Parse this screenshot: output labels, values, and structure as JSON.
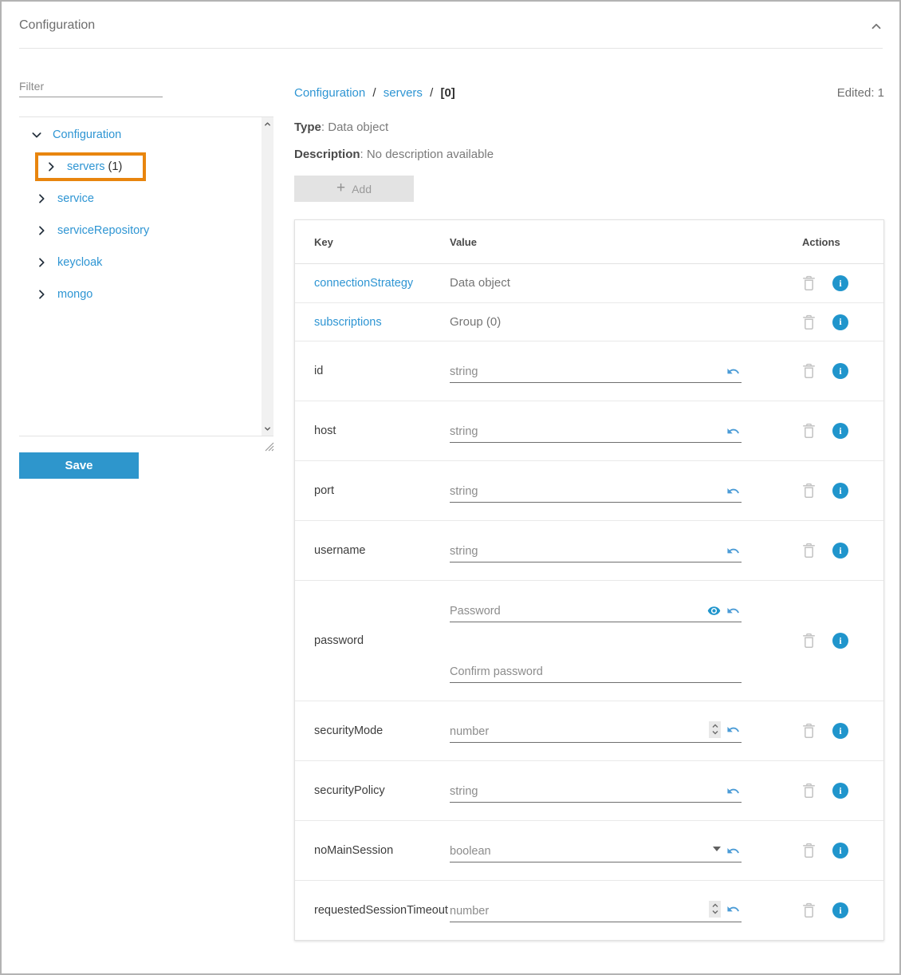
{
  "panel": {
    "title": "Configuration"
  },
  "sidebar": {
    "filter_placeholder": "Filter",
    "tree": {
      "root_label": "Configuration",
      "items": [
        {
          "label": "servers",
          "count": "(1)",
          "highlighted": true
        },
        {
          "label": "service",
          "count": "",
          "highlighted": false
        },
        {
          "label": "serviceRepository",
          "count": "",
          "highlighted": false
        },
        {
          "label": "keycloak",
          "count": "",
          "highlighted": false
        },
        {
          "label": "mongo",
          "count": "",
          "highlighted": false
        }
      ]
    },
    "save_label": "Save"
  },
  "content": {
    "breadcrumb": {
      "crumb1": "Configuration",
      "sep1": "/",
      "crumb2": "servers",
      "sep2": "/",
      "crumb3": "[0]"
    },
    "edited": "Edited: 1",
    "type_label": "Type",
    "type_value": ": Data object",
    "description_label": "Description",
    "description_value": ": No description available",
    "add_label": "Add",
    "table": {
      "headers": {
        "key": "Key",
        "value": "Value",
        "actions": "Actions"
      },
      "rows": [
        {
          "key": "connectionStrategy",
          "key_link": true,
          "type": "text",
          "value": "Data object"
        },
        {
          "key": "subscriptions",
          "key_link": true,
          "type": "text",
          "value": "Group (0)"
        },
        {
          "key": "id",
          "key_link": false,
          "type": "input",
          "placeholder": "string",
          "controls": [
            "undo"
          ]
        },
        {
          "key": "host",
          "key_link": false,
          "type": "input",
          "placeholder": "string",
          "controls": [
            "undo"
          ]
        },
        {
          "key": "port",
          "key_link": false,
          "type": "input",
          "placeholder": "string",
          "controls": [
            "undo"
          ]
        },
        {
          "key": "username",
          "key_link": false,
          "type": "input",
          "placeholder": "string",
          "controls": [
            "undo"
          ]
        },
        {
          "key": "password",
          "key_link": false,
          "type": "password",
          "fields": [
            {
              "placeholder": "Password",
              "controls": [
                "eye",
                "undo"
              ]
            },
            {
              "placeholder": "Confirm password",
              "controls": []
            }
          ]
        },
        {
          "key": "securityMode",
          "key_link": false,
          "type": "input",
          "placeholder": "number",
          "controls": [
            "spinner",
            "undo"
          ]
        },
        {
          "key": "securityPolicy",
          "key_link": false,
          "type": "input",
          "placeholder": "string",
          "controls": [
            "undo"
          ]
        },
        {
          "key": "noMainSession",
          "key_link": false,
          "type": "input",
          "placeholder": "boolean",
          "controls": [
            "dropdown",
            "undo"
          ]
        },
        {
          "key": "requestedSessionTimeout",
          "key_link": false,
          "type": "input",
          "placeholder": "number",
          "controls": [
            "spinner",
            "undo"
          ]
        }
      ]
    }
  },
  "colors": {
    "link_blue": "#2e95d3",
    "save_button_blue": "#2e96cc",
    "highlight_orange": "#e8850e",
    "info_icon_blue": "#2095cc",
    "add_button_gray": "#e3e3e3"
  }
}
